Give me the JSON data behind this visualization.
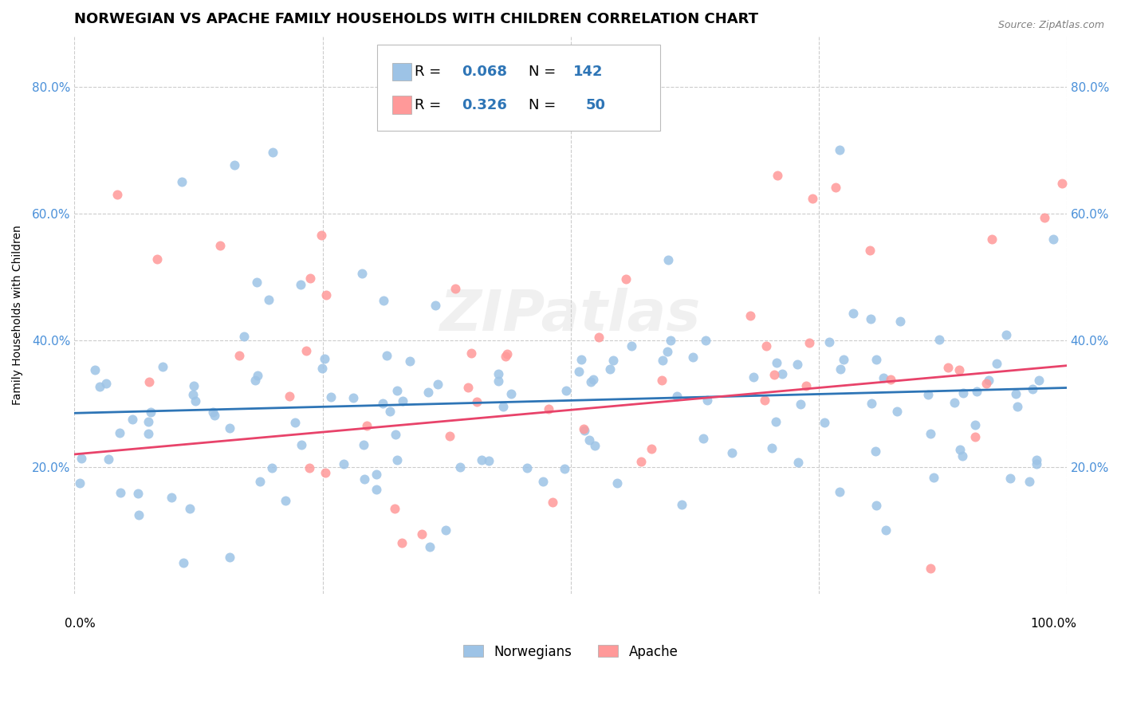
{
  "title": "NORWEGIAN VS APACHE FAMILY HOUSEHOLDS WITH CHILDREN CORRELATION CHART",
  "source": "Source: ZipAtlas.com",
  "ylabel": "Family Households with Children",
  "ytick_values": [
    0.2,
    0.4,
    0.6,
    0.8
  ],
  "xlim": [
    0.0,
    1.0
  ],
  "ylim": [
    0.0,
    0.88
  ],
  "norwegian_color": "#9DC3E6",
  "apache_color": "#FF9999",
  "norwegian_line_color": "#2E75B6",
  "apache_line_color": "#E8436A",
  "legend_text_color": "#2E75B6",
  "watermark": "ZIPatlas",
  "norwegian_R": 0.068,
  "norwegian_N": 142,
  "apache_R": 0.326,
  "apache_N": 50,
  "background_color": "#FFFFFF",
  "grid_color": "#CCCCCC",
  "title_fontsize": 13,
  "axis_fontsize": 10,
  "tick_fontsize": 11,
  "legend_fontsize": 13
}
